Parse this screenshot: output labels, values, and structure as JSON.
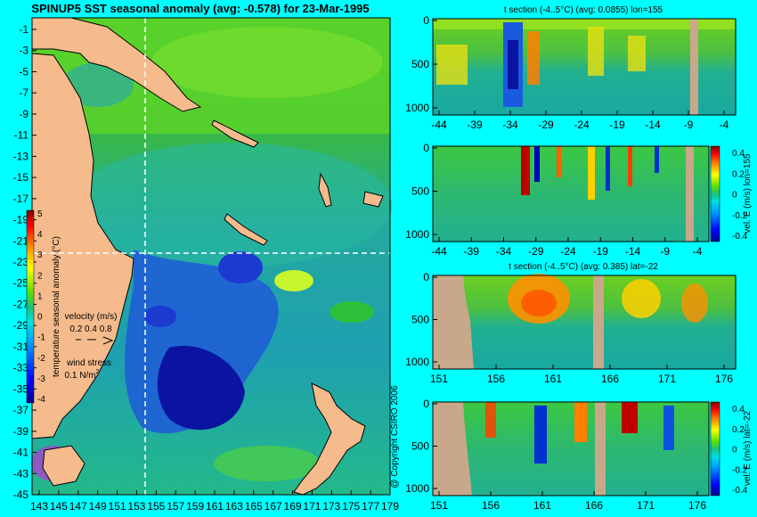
{
  "main_title": "SPINUP5 SST seasonal anomaly (avg: -0.578) for 23-Mar-1995",
  "copyright": "@ Copyright CSIRO 2006",
  "map": {
    "y_ticks": [
      "-1",
      "-3",
      "-5",
      "-7",
      "-9",
      "-11",
      "-13",
      "-15",
      "-17",
      "-19",
      "-21",
      "-23",
      "-25",
      "-27",
      "-29",
      "-31",
      "-33",
      "-35",
      "-37",
      "-39",
      "-41",
      "-43",
      "-45"
    ],
    "x_ticks": [
      "143",
      "145",
      "147",
      "149",
      "151",
      "153",
      "155",
      "157",
      "159",
      "161",
      "163",
      "165",
      "167",
      "169",
      "171",
      "173",
      "175",
      "177",
      "179"
    ],
    "colorbar_ticks": [
      "5",
      "4",
      "3",
      "2",
      "1",
      "0",
      "-1",
      "-2",
      "-3",
      "-4"
    ],
    "colorbar_label": "temperature seasonal anomaly (°C)",
    "velocity_label": "velocity (m/s)",
    "velocity_values": "0.2 0.4 0.8",
    "wind_label": "wind stress",
    "wind_value": "0.1 N/m",
    "wind_sup": "2",
    "section_lon": 155,
    "section_lat": -22
  },
  "panels": {
    "p1": {
      "title": "t section (-4..5°C) (avg: 0.0855) lon=155",
      "x_ticks": [
        "-44",
        "-39",
        "-34",
        "-29",
        "-24",
        "-19",
        "-14",
        "-9",
        "-4"
      ],
      "y_ticks": [
        "0",
        "500",
        "1000"
      ]
    },
    "p2": {
      "title": "",
      "x_ticks": [
        "-44",
        "-39",
        "-34",
        "-29",
        "-24",
        "-19",
        "-14",
        "-9",
        "-4"
      ],
      "y_ticks": [
        "0",
        "500",
        "1000"
      ],
      "cbar_ticks": [
        "0.4",
        "0.2",
        "0",
        "-0.2",
        "-0.4"
      ],
      "cbar_label": "vel. E (m/s) lon=155"
    },
    "p3": {
      "title": "t section (-4..5°C) (avg: 0.385) lat=-22",
      "x_ticks": [
        "151",
        "156",
        "161",
        "166",
        "171",
        "176"
      ],
      "y_ticks": [
        "0",
        "500",
        "1000"
      ]
    },
    "p4": {
      "title": "",
      "x_ticks": [
        "151",
        "156",
        "161",
        "166",
        "171",
        "176"
      ],
      "y_ticks": [
        "0",
        "500",
        "1000"
      ],
      "cbar_ticks": [
        "0.4",
        "0.2",
        "0",
        "-0.2",
        "-0.4"
      ],
      "cbar_label": "vel. E (m/s) lat=-22"
    }
  },
  "chart_data": [
    {
      "type": "heatmap",
      "title": "SPINUP5 SST seasonal anomaly (avg: -0.578) for 23-Mar-1995",
      "x": [
        143,
        145,
        147,
        149,
        151,
        153,
        155,
        157,
        159,
        161,
        163,
        165,
        167,
        169,
        171,
        173,
        175,
        177,
        179
      ],
      "y": [
        -1,
        -3,
        -5,
        -7,
        -9,
        -11,
        -13,
        -15,
        -17,
        -19,
        -21,
        -23,
        -25,
        -27,
        -29,
        -31,
        -33,
        -35,
        -37,
        -39,
        -41,
        -43,
        -45
      ],
      "colorbar_range": [
        -4,
        5
      ],
      "colorbar_label": "temperature seasonal anomaly (°C)",
      "avg": -0.578,
      "date": "23-Mar-1995"
    },
    {
      "type": "heatmap",
      "title": "t section (-4..5°C) (avg: 0.0855) lon=155",
      "x_range": [
        -45,
        0
      ],
      "y_range": [
        0,
        1000
      ],
      "value_range": [
        -4,
        5
      ],
      "avg": 0.0855
    },
    {
      "type": "heatmap",
      "title": "vel. E (m/s) lon=155",
      "x_range": [
        -45,
        0
      ],
      "y_range": [
        0,
        1000
      ],
      "value_range": [
        -0.4,
        0.4
      ]
    },
    {
      "type": "heatmap",
      "title": "t section (-4..5°C) (avg: 0.385) lat=-22",
      "x_range": [
        150,
        180
      ],
      "y_range": [
        0,
        1000
      ],
      "value_range": [
        -4,
        5
      ],
      "avg": 0.385
    },
    {
      "type": "heatmap",
      "title": "vel. E (m/s) lat=-22",
      "x_range": [
        150,
        180
      ],
      "y_range": [
        0,
        1000
      ],
      "value_range": [
        -0.4,
        0.4
      ]
    }
  ]
}
